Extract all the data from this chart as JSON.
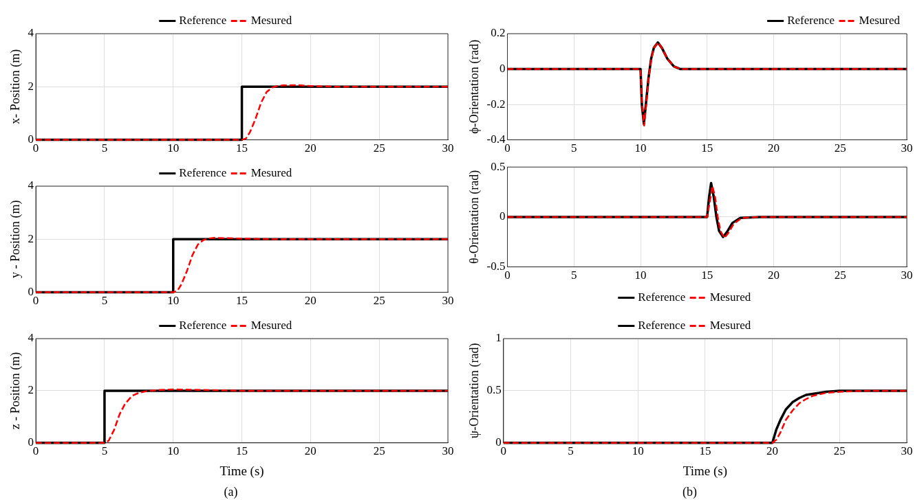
{
  "chart_data": [
    {
      "type": "line",
      "ylabel": "x- Position (m)",
      "xlim": [
        0,
        30
      ],
      "xticks": [
        0,
        5,
        10,
        15,
        20,
        25,
        30
      ],
      "ylim": [
        0,
        4
      ],
      "yticks": [
        0,
        2,
        4
      ],
      "grid": true,
      "legend": "top",
      "marker": "none",
      "series": [
        {
          "name": "Reference",
          "color": "#000000",
          "line_style": "solid",
          "x": [
            0,
            15,
            15,
            30
          ],
          "values": [
            0,
            0,
            2,
            2
          ]
        },
        {
          "name": "Mesured",
          "color": "#ff0000",
          "line_style": "dashed",
          "x": [
            0,
            15,
            15.3,
            15.6,
            16,
            16.4,
            16.8,
            17.2,
            17.6,
            18,
            19,
            20,
            22,
            30
          ],
          "values": [
            0,
            0,
            0.05,
            0.3,
            0.8,
            1.4,
            1.8,
            1.97,
            2.03,
            2.05,
            2.06,
            2.03,
            2,
            2
          ]
        }
      ]
    },
    {
      "type": "line",
      "ylabel": "ϕ-Orientation (rad)",
      "xlim": [
        0,
        30
      ],
      "xticks": [
        0,
        5,
        10,
        15,
        20,
        25,
        30
      ],
      "ylim": [
        -0.4,
        0.2
      ],
      "yticks": [
        -0.4,
        -0.2,
        0,
        0.2
      ],
      "grid": true,
      "legend": "top right",
      "marker": "none",
      "series": [
        {
          "name": "Reference",
          "color": "#000000",
          "line_style": "solid",
          "x": [
            0,
            10,
            10.1,
            10.25,
            10.4,
            10.6,
            10.8,
            11,
            11.3,
            11.6,
            12,
            12.5,
            13,
            30
          ],
          "values": [
            0,
            0,
            -0.2,
            -0.31,
            -0.2,
            -0.05,
            0.06,
            0.12,
            0.15,
            0.12,
            0.06,
            0.015,
            0,
            0
          ]
        },
        {
          "name": "Mesured",
          "color": "#ff0000",
          "line_style": "dashed",
          "x": [
            0,
            10,
            10.1,
            10.27,
            10.42,
            10.6,
            10.8,
            11,
            11.32,
            11.6,
            12,
            12.5,
            13,
            30
          ],
          "values": [
            0,
            0,
            -0.18,
            -0.32,
            -0.21,
            -0.06,
            0.05,
            0.12,
            0.15,
            0.12,
            0.06,
            0.015,
            0,
            0
          ]
        }
      ]
    },
    {
      "type": "line",
      "ylabel": "y - Position (m)",
      "xlim": [
        0,
        30
      ],
      "xticks": [
        0,
        5,
        10,
        15,
        20,
        25,
        30
      ],
      "ylim": [
        0,
        4
      ],
      "yticks": [
        0,
        2,
        4
      ],
      "grid": true,
      "legend": "top",
      "marker": "none",
      "series": [
        {
          "name": "Reference",
          "color": "#000000",
          "line_style": "solid",
          "x": [
            0,
            10,
            10,
            30
          ],
          "values": [
            0,
            0,
            2,
            2
          ]
        },
        {
          "name": "Mesured",
          "color": "#ff0000",
          "line_style": "dashed",
          "x": [
            0,
            10,
            10.3,
            10.6,
            11,
            11.4,
            11.8,
            12.2,
            12.6,
            13,
            14,
            15,
            17,
            30
          ],
          "values": [
            0,
            0,
            0.05,
            0.3,
            0.8,
            1.4,
            1.8,
            1.97,
            2.03,
            2.05,
            2.04,
            2.02,
            2,
            2
          ]
        }
      ]
    },
    {
      "type": "line",
      "ylabel": "θ-Orientation (rad)",
      "xlim": [
        0,
        30
      ],
      "xticks": [
        0,
        5,
        10,
        15,
        20,
        25,
        30
      ],
      "ylim": [
        -0.5,
        0.5
      ],
      "yticks": [
        -0.5,
        0,
        0.5
      ],
      "grid": true,
      "legend": "bottom",
      "marker": "none",
      "series": [
        {
          "name": "Reference",
          "color": "#000000",
          "line_style": "solid",
          "x": [
            0,
            15,
            15.15,
            15.3,
            15.5,
            15.7,
            15.9,
            16.2,
            16.5,
            16.9,
            17.5,
            19,
            30
          ],
          "values": [
            0,
            0,
            0.2,
            0.34,
            0.2,
            0,
            -0.14,
            -0.2,
            -0.15,
            -0.06,
            -0.01,
            0,
            0
          ]
        },
        {
          "name": "Mesured",
          "color": "#ff0000",
          "line_style": "dashed",
          "x": [
            0,
            15,
            15.2,
            15.4,
            15.6,
            15.8,
            16,
            16.3,
            16.6,
            17,
            17.6,
            19,
            30
          ],
          "values": [
            0,
            0,
            0.15,
            0.31,
            0.2,
            0,
            -0.14,
            -0.21,
            -0.16,
            -0.07,
            -0.01,
            0,
            0
          ]
        }
      ]
    },
    {
      "type": "line",
      "ylabel": "z - Position (m)",
      "xlabel": "Time (s)",
      "annotations": [
        "(a)"
      ],
      "xlim": [
        0,
        30
      ],
      "xticks": [
        0,
        5,
        10,
        15,
        20,
        25,
        30
      ],
      "ylim": [
        0,
        4
      ],
      "yticks": [
        0,
        2,
        4
      ],
      "grid": true,
      "legend": "top",
      "marker": "none",
      "series": [
        {
          "name": "Reference",
          "color": "#000000",
          "line_style": "solid",
          "x": [
            0,
            5,
            5,
            30
          ],
          "values": [
            0,
            0,
            2,
            2
          ]
        },
        {
          "name": "Mesured",
          "color": "#ff0000",
          "line_style": "dashed",
          "x": [
            0,
            5,
            5.3,
            5.7,
            6.1,
            6.5,
            7,
            7.5,
            8,
            9,
            10,
            12,
            15,
            30
          ],
          "values": [
            0,
            0,
            0.08,
            0.5,
            1.1,
            1.5,
            1.8,
            1.92,
            1.98,
            2.03,
            2.05,
            2.03,
            2,
            2
          ]
        }
      ]
    },
    {
      "type": "line",
      "ylabel": "ψ-Orientation (rad)",
      "xlabel": "Time (s)",
      "annotations": [
        "(b)"
      ],
      "xlim": [
        0,
        30
      ],
      "xticks": [
        0,
        5,
        10,
        15,
        20,
        25,
        30
      ],
      "ylim": [
        0,
        1
      ],
      "yticks": [
        0,
        0.5,
        1
      ],
      "grid": true,
      "legend": "top",
      "marker": "none",
      "series": [
        {
          "name": "Reference",
          "color": "#000000",
          "line_style": "solid",
          "x": [
            0,
            20,
            20.3,
            20.6,
            21,
            21.5,
            22,
            22.5,
            23,
            24,
            25,
            27,
            30
          ],
          "values": [
            0,
            0,
            0.13,
            0.22,
            0.32,
            0.39,
            0.43,
            0.46,
            0.47,
            0.49,
            0.5,
            0.5,
            0.5
          ]
        },
        {
          "name": "Mesured",
          "color": "#ff0000",
          "line_style": "dashed",
          "x": [
            0,
            20,
            20.3,
            20.6,
            21,
            21.5,
            22,
            22.5,
            23,
            24,
            25,
            27,
            30
          ],
          "values": [
            0,
            0,
            0.03,
            0.1,
            0.22,
            0.31,
            0.38,
            0.42,
            0.45,
            0.48,
            0.49,
            0.5,
            0.5
          ]
        }
      ]
    }
  ]
}
